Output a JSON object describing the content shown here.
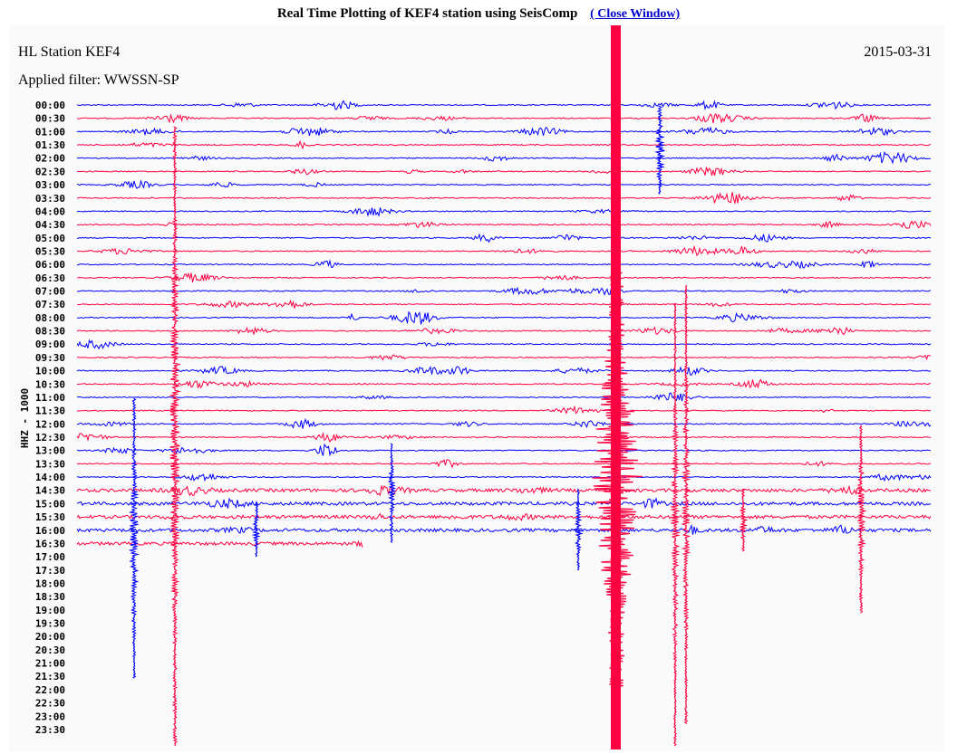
{
  "header": {
    "title": "Real Time Plotting of KEF4 station using SeisComp",
    "link": "( Close Window)"
  },
  "plot": {
    "station": "HL Station KEF4",
    "date": "2015-03-31",
    "filter": "Applied filter: WWSSN-SP",
    "channel": "HHZ - 1000",
    "time_labels": [
      "00:00",
      "00:30",
      "01:00",
      "01:30",
      "02:00",
      "02:30",
      "03:00",
      "03:30",
      "04:00",
      "04:30",
      "05:00",
      "05:30",
      "06:00",
      "06:30",
      "07:00",
      "07:30",
      "08:00",
      "08:30",
      "09:00",
      "09:30",
      "10:00",
      "10:30",
      "11:00",
      "11:30",
      "12:00",
      "12:30",
      "13:00",
      "13:30",
      "14:00",
      "14:30",
      "15:00",
      "15:30",
      "16:00",
      "16:30",
      "17:00",
      "17:30",
      "18:00",
      "18:30",
      "19:00",
      "19:30",
      "20:00",
      "20:30",
      "21:00",
      "21:30",
      "22:00",
      "22:30",
      "23:00",
      "23:30"
    ]
  }
}
